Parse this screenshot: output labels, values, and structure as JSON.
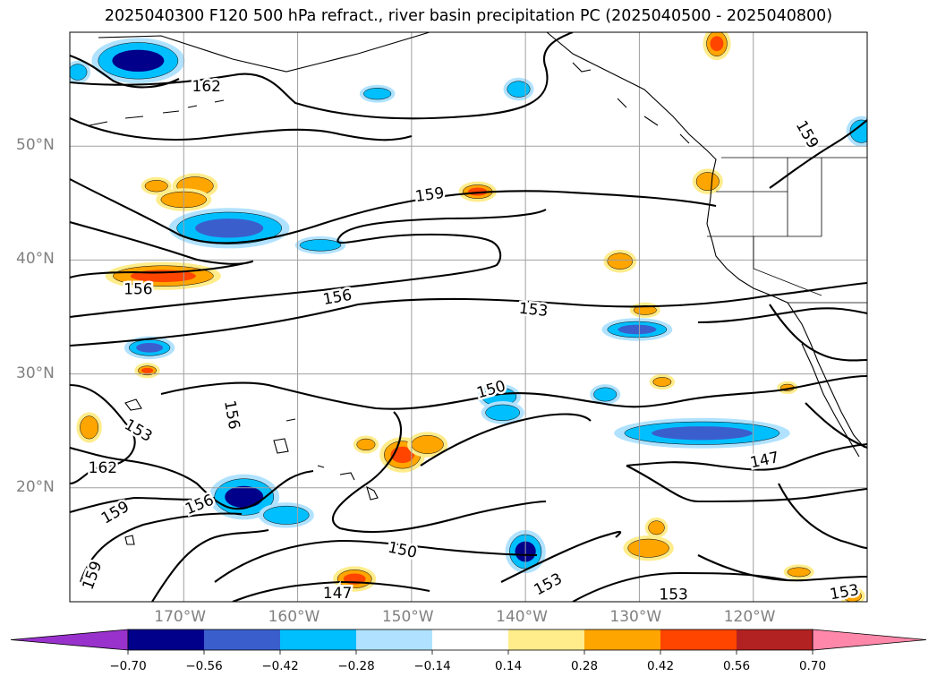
{
  "title": "2025040300 F120 500 hPa refract., river basin precipitation PC (2025040500 - 2025040800)",
  "map": {
    "lon_range": [
      -180,
      -110
    ],
    "lat_range": [
      10,
      60
    ],
    "lat_labels": [
      {
        "lat": 50,
        "text": "50°N"
      },
      {
        "lat": 40,
        "text": "40°N"
      },
      {
        "lat": 30,
        "text": "30°N"
      },
      {
        "lat": 20,
        "text": "20°N"
      }
    ],
    "lon_labels": [
      {
        "lon": -170,
        "text": "170°W"
      },
      {
        "lon": -160,
        "text": "160°W"
      },
      {
        "lon": -150,
        "text": "150°W"
      },
      {
        "lon": -140,
        "text": "140°W"
      },
      {
        "lon": -130,
        "text": "130°W"
      },
      {
        "lon": -120,
        "text": "120°W"
      }
    ],
    "contour_labels": [
      {
        "text": "162",
        "lon": -168,
        "lat": 55.2,
        "rot": 0
      },
      {
        "text": "159",
        "lon": -148.4,
        "lat": 45.7,
        "rot": -8
      },
      {
        "text": "156",
        "lon": -174,
        "lat": 37.4,
        "rot": 0
      },
      {
        "text": "156",
        "lon": -156.5,
        "lat": 36.7,
        "rot": -10
      },
      {
        "text": "153",
        "lon": -139.3,
        "lat": 35.6,
        "rot": 6
      },
      {
        "text": "150",
        "lon": -143,
        "lat": 28.6,
        "rot": -16
      },
      {
        "text": "156",
        "lon": -165.8,
        "lat": 26.4,
        "rot": 80
      },
      {
        "text": "153",
        "lon": -174,
        "lat": 25,
        "rot": 30
      },
      {
        "text": "162",
        "lon": -177.1,
        "lat": 21.7,
        "rot": 0
      },
      {
        "text": "159",
        "lon": -176,
        "lat": 17.8,
        "rot": -30
      },
      {
        "text": "156",
        "lon": -168.6,
        "lat": 18.5,
        "rot": -22
      },
      {
        "text": "159",
        "lon": -178,
        "lat": 12.3,
        "rot": -70
      },
      {
        "text": "150",
        "lon": -150.8,
        "lat": 14.5,
        "rot": 12
      },
      {
        "text": "147",
        "lon": -156.5,
        "lat": 10.7,
        "rot": 0
      },
      {
        "text": "153",
        "lon": -138,
        "lat": 11.5,
        "rot": -28
      },
      {
        "text": "153",
        "lon": -127,
        "lat": 10.6,
        "rot": 0
      },
      {
        "text": "147",
        "lon": -119,
        "lat": 22.4,
        "rot": -12
      },
      {
        "text": "153",
        "lon": -112,
        "lat": 10.8,
        "rot": -10
      },
      {
        "text": "159",
        "lon": -115.3,
        "lat": 51,
        "rot": 60
      }
    ]
  },
  "colorbar": {
    "colors": [
      "#9932CC",
      "#00008B",
      "#3A5FCD",
      "#00BFFF",
      "#B0E2FF",
      "#FFFFFF",
      "#FFEC8B",
      "#FFA500",
      "#FF4500",
      "#B22222",
      "#FF88AA"
    ],
    "tick_labels": [
      "−0.70",
      "−0.56",
      "−0.42",
      "−0.28",
      "−0.14",
      "0.14",
      "0.28",
      "0.42",
      "0.56",
      "0.70"
    ]
  },
  "chart_data": {
    "type": "heatmap",
    "field": "500 hPa refract. contours with river basin precipitation PC shading",
    "contour_levels": [
      147,
      150,
      153,
      156,
      159,
      162
    ],
    "shading_levels": [
      -0.7,
      -0.56,
      -0.42,
      -0.28,
      -0.14,
      0.14,
      0.28,
      0.42,
      0.56,
      0.7
    ],
    "anomaly_blobs": [
      {
        "lon": -174,
        "lat": 57.5,
        "rx": 3.5,
        "ry": 1.6,
        "level": -0.56
      },
      {
        "lon": -179.3,
        "lat": 56.5,
        "rx": 0.8,
        "ry": 0.7,
        "level": -0.28
      },
      {
        "lon": -166,
        "lat": 42.8,
        "rx": 4.6,
        "ry": 1.4,
        "level": -0.42
      },
      {
        "lon": -158,
        "lat": 41.3,
        "rx": 1.8,
        "ry": 0.5,
        "level": -0.28
      },
      {
        "lon": -153,
        "lat": 54.6,
        "rx": 1.2,
        "ry": 0.5,
        "level": -0.28
      },
      {
        "lon": -140.6,
        "lat": 55,
        "rx": 1.0,
        "ry": 0.7,
        "level": -0.28
      },
      {
        "lon": -173,
        "lat": 32.3,
        "rx": 1.8,
        "ry": 0.7,
        "level": -0.42
      },
      {
        "lon": -164.7,
        "lat": 19.2,
        "rx": 2.6,
        "ry": 1.6,
        "level": -0.56
      },
      {
        "lon": -161,
        "lat": 17.6,
        "rx": 2.0,
        "ry": 0.8,
        "level": -0.28
      },
      {
        "lon": -140,
        "lat": 14.4,
        "rx": 1.4,
        "ry": 1.5,
        "level": -0.56
      },
      {
        "lon": -130.2,
        "lat": 33.9,
        "rx": 2.6,
        "ry": 0.7,
        "level": -0.42
      },
      {
        "lon": -124.5,
        "lat": 24.8,
        "rx": 6.8,
        "ry": 1.0,
        "level": -0.42
      },
      {
        "lon": -142.3,
        "lat": 28,
        "rx": 1.5,
        "ry": 0.8,
        "level": -0.28
      },
      {
        "lon": -142,
        "lat": 26.6,
        "rx": 1.5,
        "ry": 0.7,
        "level": -0.28
      },
      {
        "lon": -133,
        "lat": 28.2,
        "rx": 1.0,
        "ry": 0.6,
        "level": -0.28
      },
      {
        "lon": -110.5,
        "lat": 51.3,
        "rx": 1.0,
        "ry": 1.0,
        "level": -0.28
      },
      {
        "lon": -171.8,
        "lat": 38.6,
        "rx": 4.4,
        "ry": 0.9,
        "level": 0.42
      },
      {
        "lon": -172.4,
        "lat": 46.5,
        "rx": 1.0,
        "ry": 0.5,
        "level": 0.28
      },
      {
        "lon": -169,
        "lat": 46.5,
        "rx": 1.6,
        "ry": 0.8,
        "level": 0.28
      },
      {
        "lon": -170,
        "lat": 45.3,
        "rx": 2.0,
        "ry": 0.7,
        "level": 0.28
      },
      {
        "lon": -150.8,
        "lat": 22.9,
        "rx": 1.6,
        "ry": 1.2,
        "level": 0.42
      },
      {
        "lon": -144.2,
        "lat": 46,
        "rx": 1.3,
        "ry": 0.6,
        "level": 0.42
      },
      {
        "lon": -178.3,
        "lat": 25.3,
        "rx": 0.8,
        "ry": 1.0,
        "level": 0.28
      },
      {
        "lon": -173.2,
        "lat": 30.3,
        "rx": 0.8,
        "ry": 0.4,
        "level": 0.42
      },
      {
        "lon": -148.6,
        "lat": 23.8,
        "rx": 1.4,
        "ry": 0.8,
        "level": 0.28
      },
      {
        "lon": -155,
        "lat": 12,
        "rx": 1.5,
        "ry": 0.8,
        "level": 0.42
      },
      {
        "lon": -154,
        "lat": 23.8,
        "rx": 0.8,
        "ry": 0.5,
        "level": 0.28
      },
      {
        "lon": -131.7,
        "lat": 39.9,
        "rx": 1.1,
        "ry": 0.7,
        "level": 0.28
      },
      {
        "lon": -124,
        "lat": 46.9,
        "rx": 1.0,
        "ry": 0.8,
        "level": 0.28
      },
      {
        "lon": -123.2,
        "lat": 59,
        "rx": 0.9,
        "ry": 1.1,
        "level": 0.42
      },
      {
        "lon": -129.5,
        "lat": 35.6,
        "rx": 1.0,
        "ry": 0.4,
        "level": 0.28
      },
      {
        "lon": -129.2,
        "lat": 14.7,
        "rx": 1.8,
        "ry": 0.8,
        "level": 0.28
      },
      {
        "lon": -128.5,
        "lat": 16.5,
        "rx": 0.7,
        "ry": 0.6,
        "level": 0.28
      },
      {
        "lon": -116,
        "lat": 12.6,
        "rx": 1.0,
        "ry": 0.4,
        "level": 0.28
      },
      {
        "lon": -117,
        "lat": 28.8,
        "rx": 0.6,
        "ry": 0.3,
        "level": 0.28
      },
      {
        "lon": -128,
        "lat": 29.3,
        "rx": 0.8,
        "ry": 0.4,
        "level": 0.28
      },
      {
        "lon": -111.3,
        "lat": 10.5,
        "rx": 0.8,
        "ry": 0.5,
        "level": 0.28
      }
    ]
  }
}
